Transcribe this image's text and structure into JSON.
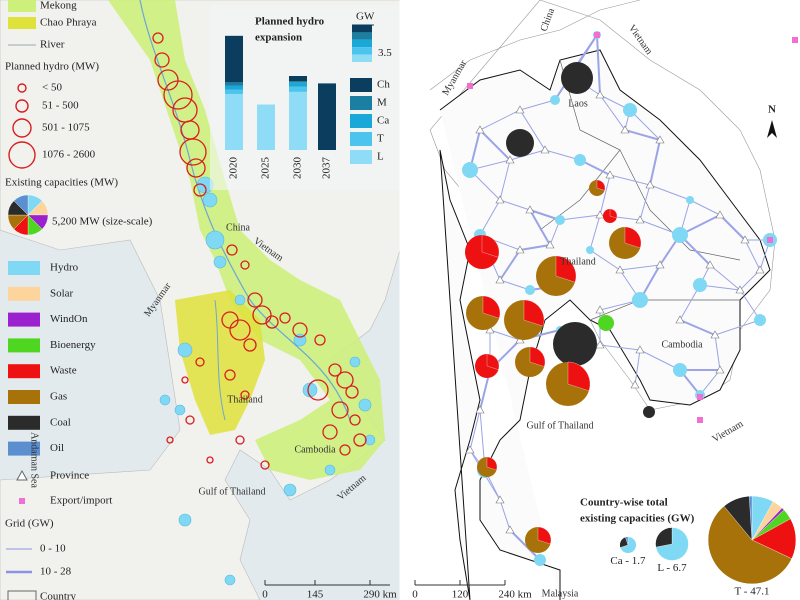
{
  "left_map": {
    "legend": {
      "basins": [
        {
          "label": "Mekong",
          "color": "#cdef7c"
        },
        {
          "label": "Chao Phraya",
          "color": "#dfe23a"
        }
      ],
      "river": "River",
      "planned_hydro_title": "Planned hydro (MW)",
      "planned_hydro_sizes": [
        "< 50",
        "51 - 500",
        "501 - 1075",
        "1076 - 2600"
      ],
      "existing_title": "Existing capacities (MW)",
      "pie_scale_label": "5,200 MW (size-scale)",
      "technologies": [
        {
          "label": "Hydro",
          "color": "#7fd8f4"
        },
        {
          "label": "Solar",
          "color": "#fcd49c"
        },
        {
          "label": "WindOn",
          "color": "#9b21cf"
        },
        {
          "label": "Bioenergy",
          "color": "#4fd621"
        },
        {
          "label": "Waste",
          "color": "#ee1111"
        },
        {
          "label": "Gas",
          "color": "#a8720b"
        },
        {
          "label": "Coal",
          "color": "#2b2b2b"
        },
        {
          "label": "Oil",
          "color": "#5b8fd0"
        }
      ],
      "province": "Province",
      "export": "Export/import",
      "grid_title": "Grid (GW)",
      "grid_levels": [
        "0 - 10",
        "10 - 28"
      ],
      "country": "Country"
    },
    "inset_chart": {
      "type": "bar",
      "title": [
        "Planned hydro",
        "expansion"
      ],
      "unit": "GW",
      "scale_value": 3.5,
      "categories": [
        "2020",
        "2025",
        "2030",
        "2037"
      ],
      "series": [
        {
          "name": "L",
          "color": "#8fdcf7",
          "values": [
            5.3,
            4.3,
            5.5,
            0
          ]
        },
        {
          "name": "T",
          "color": "#4cc4ee",
          "values": [
            0.4,
            0,
            0.5,
            0
          ]
        },
        {
          "name": "Ca",
          "color": "#1aa8d8",
          "values": [
            0.4,
            0,
            0.4,
            0
          ]
        },
        {
          "name": "M",
          "color": "#1a7fa0",
          "values": [
            0.3,
            0,
            0.1,
            0
          ]
        },
        {
          "name": "Ch",
          "color": "#0b3d5e",
          "values": [
            4.4,
            0,
            0.5,
            6.3
          ]
        }
      ]
    },
    "places": [
      {
        "label": "China"
      },
      {
        "label": "Vietnam"
      },
      {
        "label": "Myanmar"
      },
      {
        "label": "Thailand"
      },
      {
        "label": "Cambodia"
      },
      {
        "label": "Vietnam"
      },
      {
        "label": "Andaman Sea"
      },
      {
        "label": "Gulf of Thailand"
      }
    ],
    "scale_bar": [
      "0",
      "145",
      "290 km"
    ]
  },
  "right_map": {
    "places": [
      {
        "label": "China"
      },
      {
        "label": "Vietnam"
      },
      {
        "label": "Myanmar"
      },
      {
        "label": "Laos"
      },
      {
        "label": "Thailand"
      },
      {
        "label": "Cambodia"
      },
      {
        "label": "Gulf of Thailand"
      },
      {
        "label": "Vietnam"
      },
      {
        "label": "Malaysia"
      }
    ],
    "north": "N",
    "country_totals": {
      "title": [
        "Country-wise total",
        "existing capacities (GW)"
      ],
      "items": [
        {
          "value": 1.7,
          "label": "Ca - 1.7",
          "shares": [
            70,
            0,
            0,
            0,
            0,
            0,
            25,
            5
          ]
        },
        {
          "value": 6.7,
          "label": "L - 6.7",
          "shares": [
            72,
            0,
            0,
            0,
            0,
            0,
            28,
            0
          ]
        },
        {
          "value": 47.1,
          "label": "T - 47.1",
          "shares": [
            8,
            4,
            1,
            4,
            15,
            57,
            10,
            1
          ]
        }
      ]
    },
    "scale_bar": [
      "0",
      "120",
      "240 km"
    ]
  }
}
